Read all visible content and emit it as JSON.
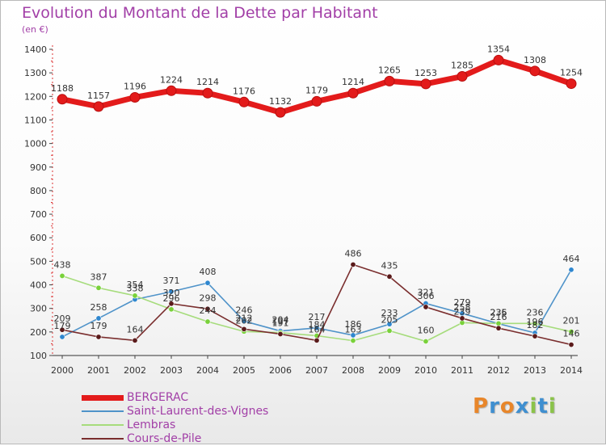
{
  "title": "Evolution du Montant de la Dette par Habitant",
  "unit": "(en €)",
  "brand": {
    "letters": [
      {
        "ch": "P",
        "color": "#e8862a"
      },
      {
        "ch": "r",
        "color": "#3f8fd0"
      },
      {
        "ch": "o",
        "color": "#e8862a"
      },
      {
        "ch": "x",
        "color": "#3f8fd0"
      },
      {
        "ch": "i",
        "color": "#8bc34a"
      },
      {
        "ch": "t",
        "color": "#3f8fd0"
      },
      {
        "ch": "i",
        "color": "#8bc34a"
      }
    ]
  },
  "chart_data": {
    "type": "line",
    "x": [
      "2000",
      "2001",
      "2002",
      "2003",
      "2004",
      "2005",
      "2006",
      "2007",
      "2008",
      "2009",
      "2010",
      "2011",
      "2012",
      "2013",
      "2014"
    ],
    "ylim": [
      100,
      1400
    ],
    "yticks": [
      100,
      200,
      300,
      400,
      500,
      600,
      700,
      800,
      900,
      1000,
      1100,
      1200,
      1300,
      1400
    ],
    "grid": false,
    "legend_position": "bottom-left",
    "series": [
      {
        "name": "BERGERAC",
        "color": "#e31b1b",
        "emphasis": true,
        "values": [
          1188,
          1157,
          1196,
          1224,
          1214,
          1176,
          1132,
          1179,
          1214,
          1265,
          1253,
          1285,
          1354,
          1308,
          1254
        ]
      },
      {
        "name": "Saint-Laurent-des-Vignes",
        "color": "#4f93c9",
        "marker": "#2f87cf",
        "values": [
          179,
          258,
          338,
          371,
          408,
          246,
          204,
          217,
          186,
          233,
          321,
          279,
          235,
          196,
          464
        ]
      },
      {
        "name": "Lembras",
        "color": "#a6dc7c",
        "marker": "#79d13a",
        "values": [
          438,
          387,
          354,
          296,
          244,
          202,
          197,
          184,
          163,
          205,
          160,
          239,
          236,
          236,
          201
        ]
      },
      {
        "name": "Cours-de-Pile",
        "color": "#7a2e2e",
        "marker": "#5a1a1a",
        "values": [
          209,
          179,
          164,
          320,
          298,
          212,
          191,
          164,
          486,
          435,
          306,
          258,
          216,
          182,
          146
        ]
      }
    ]
  }
}
